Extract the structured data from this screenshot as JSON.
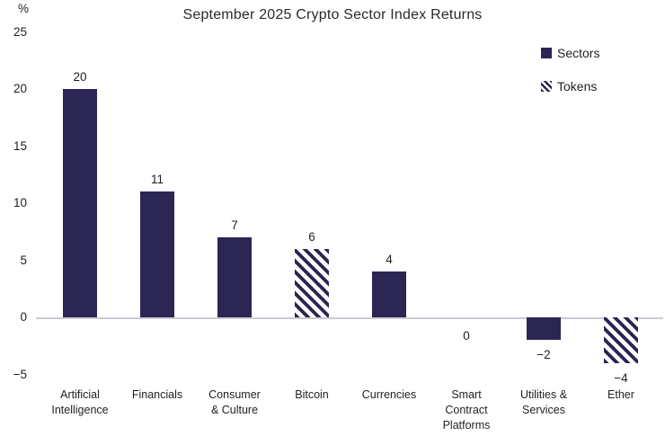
{
  "chart_data": {
    "type": "bar",
    "title": "September 2025 Crypto Sector Index Returns",
    "unit_label": "%",
    "ylim": [
      -5,
      25
    ],
    "grid": false,
    "yticks": [
      25,
      20,
      15,
      10,
      5,
      0,
      -5
    ],
    "ytick_labels": [
      "25",
      "20",
      "15",
      "10",
      "5",
      "0",
      "−5"
    ],
    "categories": [
      "Artificial Intelligence",
      "Financials",
      "Consumer & Culture",
      "Bitcoin",
      "Currencies",
      "Smart Contract Platforms",
      "Utilities & Services",
      "Ether"
    ],
    "category_lines": [
      [
        "Artificial",
        "Intelligence"
      ],
      [
        "Financials"
      ],
      [
        "Consumer",
        "& Culture"
      ],
      [
        "Bitcoin"
      ],
      [
        "Currencies"
      ],
      [
        "Smart",
        "Contract",
        "Platforms"
      ],
      [
        "Utilities &",
        "Services"
      ],
      [
        "Ether"
      ]
    ],
    "values": [
      20,
      11,
      7,
      6,
      4,
      0,
      -2,
      -4
    ],
    "value_labels": [
      "20",
      "11",
      "7",
      "6",
      "4",
      "0",
      "−2",
      "−4"
    ],
    "styles": [
      "solid",
      "solid",
      "solid",
      "hatched",
      "solid",
      "solid",
      "solid",
      "hatched"
    ],
    "legend": {
      "position": "top-right",
      "entries": [
        {
          "label": "Sectors",
          "style": "solid"
        },
        {
          "label": "Tokens",
          "style": "hatched"
        }
      ]
    },
    "colors": {
      "bar_solid": "#2b2654",
      "hatch_stripe": "#2b2654",
      "hatch_background": "#ffffff",
      "baseline": "#cbcbd4",
      "text": "#1f1f1f"
    }
  }
}
